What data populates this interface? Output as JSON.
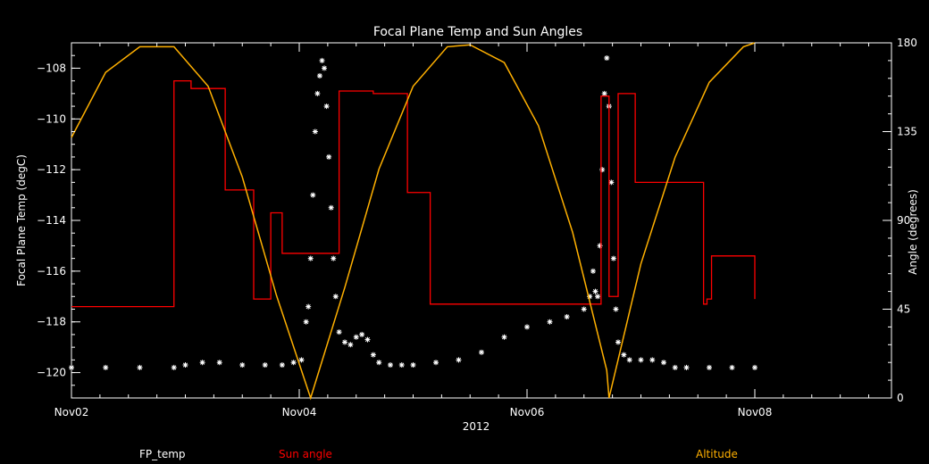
{
  "chart_data": {
    "type": "line",
    "title": "Focal Plane Temp and Sun Angles",
    "xlabel": "2012",
    "ylabel": "Focal Plane Temp (degC)",
    "y2label": "Angle (degrees)",
    "xlim": [
      2.0,
      9.2
    ],
    "ylim": [
      -121.0,
      -107.0
    ],
    "y2lim": [
      0,
      180
    ],
    "x_ticks": [
      2,
      4,
      6,
      8
    ],
    "x_tick_labels": [
      "Nov02",
      "Nov04",
      "Nov06",
      "Nov08"
    ],
    "y_ticks": [
      -120,
      -118,
      -116,
      -114,
      -112,
      -110,
      -108
    ],
    "y2_ticks": [
      0,
      45,
      90,
      135,
      180
    ],
    "grid": false,
    "series": [
      {
        "name": "FP_temp",
        "axis": "left",
        "style": "markers",
        "color": "#ffffff",
        "x": [
          2.0,
          2.3,
          2.6,
          2.9,
          3.0,
          3.15,
          3.3,
          3.5,
          3.7,
          3.85,
          3.95,
          4.02,
          4.06,
          4.08,
          4.1,
          4.12,
          4.14,
          4.16,
          4.18,
          4.2,
          4.22,
          4.24,
          4.26,
          4.28,
          4.3,
          4.32,
          4.35,
          4.4,
          4.45,
          4.5,
          4.55,
          4.6,
          4.65,
          4.7,
          4.8,
          4.9,
          5.0,
          5.2,
          5.4,
          5.6,
          5.8,
          6.0,
          6.2,
          6.35,
          6.5,
          6.55,
          6.58,
          6.6,
          6.62,
          6.64,
          6.66,
          6.68,
          6.7,
          6.72,
          6.74,
          6.76,
          6.78,
          6.8,
          6.85,
          6.9,
          7.0,
          7.1,
          7.2,
          7.3,
          7.4,
          7.6,
          7.8,
          8.0
        ],
        "values": [
          -119.8,
          -119.8,
          -119.8,
          -119.8,
          -119.7,
          -119.6,
          -119.6,
          -119.7,
          -119.7,
          -119.7,
          -119.6,
          -119.5,
          -118.0,
          -117.4,
          -115.5,
          -113.0,
          -110.5,
          -109.0,
          -108.3,
          -107.7,
          -108.0,
          -109.5,
          -111.5,
          -113.5,
          -115.5,
          -117.0,
          -118.4,
          -118.8,
          -118.9,
          -118.6,
          -118.5,
          -118.7,
          -119.3,
          -119.6,
          -119.7,
          -119.7,
          -119.7,
          -119.6,
          -119.5,
          -119.2,
          -118.6,
          -118.2,
          -118.0,
          -117.8,
          -117.5,
          -117.0,
          -116.0,
          -116.8,
          -117.0,
          -115.0,
          -112.0,
          -109.0,
          -107.6,
          -109.5,
          -112.5,
          -115.5,
          -117.5,
          -118.8,
          -119.3,
          -119.5,
          -119.5,
          -119.5,
          -119.6,
          -119.8,
          -119.8,
          -119.8,
          -119.8,
          -119.8
        ]
      },
      {
        "name": "Sun angle",
        "axis": "left",
        "style": "step",
        "color": "#ff0000",
        "x": [
          2.0,
          2.8,
          2.9,
          3.05,
          3.35,
          3.6,
          3.75,
          3.85,
          4.35,
          4.65,
          4.95,
          5.15,
          6.65,
          6.72,
          6.8,
          6.95,
          7.25,
          7.55,
          7.58,
          7.62,
          8.0
        ],
        "values": [
          -117.4,
          -117.4,
          -108.5,
          -108.8,
          -112.8,
          -117.1,
          -113.7,
          -115.3,
          -108.9,
          -109.0,
          -112.9,
          -117.3,
          -109.1,
          -117.0,
          -109.0,
          -112.5,
          -112.5,
          -117.3,
          -117.1,
          -115.4,
          -117.1
        ]
      },
      {
        "name": "Altitude",
        "axis": "right",
        "style": "line",
        "color": "#ffb000",
        "x": [
          2.0,
          2.3,
          2.6,
          2.9,
          3.2,
          3.5,
          3.8,
          4.1,
          4.4,
          4.7,
          5.0,
          5.3,
          5.5,
          5.8,
          6.1,
          6.4,
          6.7,
          6.72,
          7.0,
          7.3,
          7.6,
          7.9,
          8.0
        ],
        "values": [
          132,
          165,
          178,
          178,
          158,
          112,
          52,
          0,
          56,
          116,
          158,
          178,
          179,
          170,
          138,
          84,
          14,
          0,
          68,
          122,
          160,
          178,
          180
        ]
      }
    ]
  }
}
